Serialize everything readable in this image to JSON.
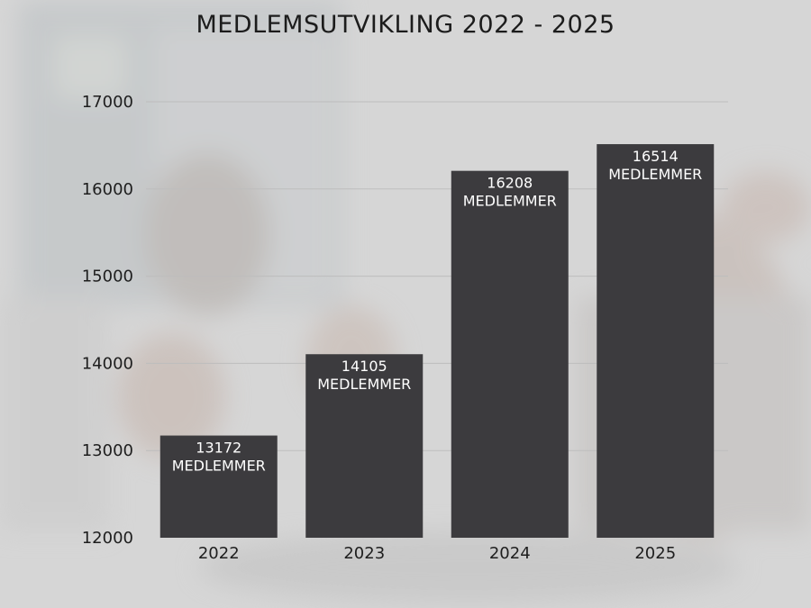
{
  "chart_data": {
    "type": "bar",
    "title": "MEDLEMSUTVIKLING 2022 - 2025",
    "categories": [
      "2022",
      "2023",
      "2024",
      "2025"
    ],
    "values": [
      13172,
      14105,
      16208,
      16514
    ],
    "data_labels": [
      "13172",
      "14105",
      "16208",
      "16514"
    ],
    "data_label_unit": "MEDLEMMER",
    "xlabel": "",
    "ylabel": "",
    "ylim": [
      12000,
      17000
    ],
    "yticks": [
      "12000",
      "13000",
      "14000",
      "15000",
      "16000",
      "17000"
    ],
    "grid": true,
    "bar_color": "#3c3b3e",
    "background_color": "#d9d9d9"
  }
}
